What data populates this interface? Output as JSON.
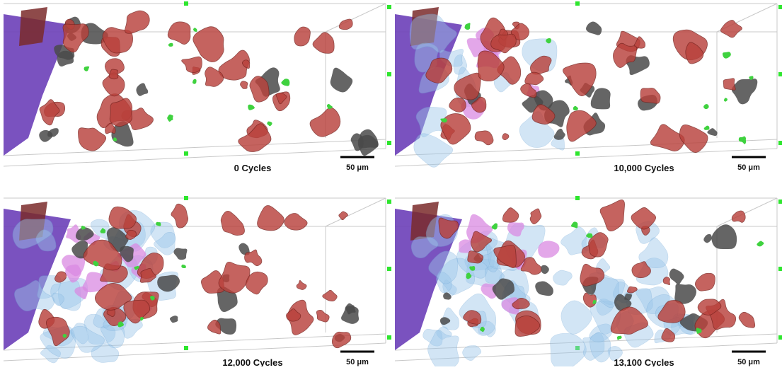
{
  "panels": [
    {
      "label": "0 Cycles",
      "scale_bar": "50 μm"
    },
    {
      "label": "10,000 Cycles",
      "scale_bar": "50 μm"
    },
    {
      "label": "12,000 Cycles",
      "scale_bar": "50 μm"
    },
    {
      "label": "13,100 Cycles",
      "scale_bar": "50 μm"
    }
  ]
}
